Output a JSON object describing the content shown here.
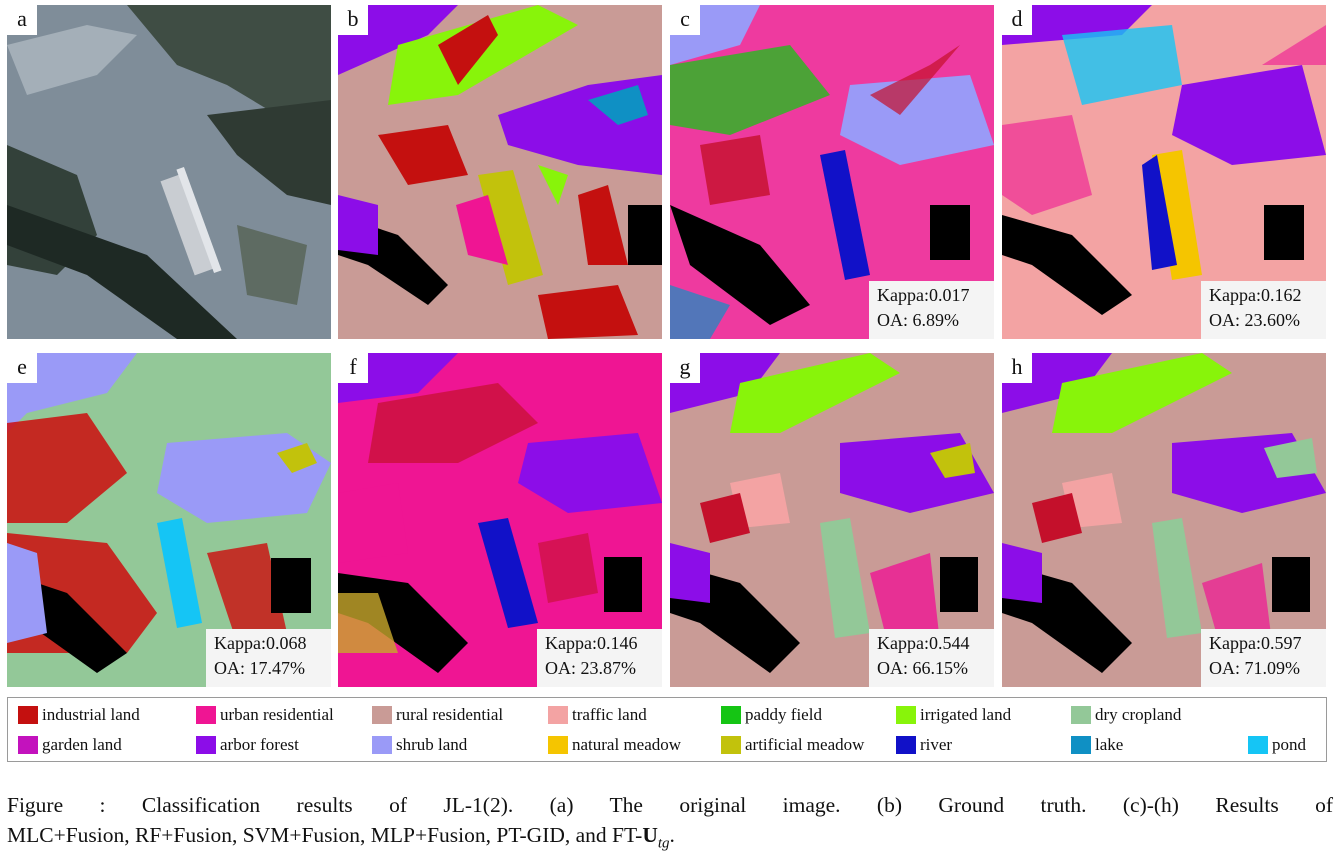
{
  "panels": [
    {
      "id": "a",
      "type": "satellite"
    },
    {
      "id": "b",
      "type": "ground_truth"
    },
    {
      "id": "c",
      "type": "result",
      "kappa": "Kappa:0.017",
      "oa": "OA: 6.89%",
      "base": "#ee3a9f",
      "spots": [
        "#7e7cf0",
        "#15c514",
        "#c4102b",
        "#ee3a9f"
      ]
    },
    {
      "id": "d",
      "type": "result",
      "kappa": "Kappa:0.162",
      "oa": "OA: 23.60%",
      "base": "#f3a3a3",
      "spots": [
        "#ee1a8e",
        "#2fb8ee",
        "#1111c8",
        "#7a12e5"
      ]
    },
    {
      "id": "e",
      "type": "result",
      "kappa": "Kappa:0.068",
      "oa": "OA: 17.47%",
      "base": "#d5b9b2",
      "spots": [
        "#cd0d0d",
        "#93c898",
        "#12b2ee",
        "#cd0d0d"
      ]
    },
    {
      "id": "f",
      "type": "result",
      "kappa": "Kappa:0.146",
      "oa": "OA: 23.87%",
      "base": "#ef1593",
      "spots": [
        "#c4102b",
        "#1111c8",
        "#ee3a9f",
        "#c8a82c"
      ]
    },
    {
      "id": "g",
      "type": "result",
      "kappa": "Kappa:0.544",
      "oa": "OA: 66.15%",
      "base": "#c99b96",
      "spots": [
        "#f3a3a3",
        "#ef1593",
        "#c4102b",
        "#93c898"
      ]
    },
    {
      "id": "h",
      "type": "result",
      "kappa": "Kappa:0.597",
      "oa": "OA: 71.09%",
      "base": "#c99b96",
      "spots": [
        "#f3a3a3",
        "#ef1593",
        "#c4102b",
        "#93c898"
      ]
    }
  ],
  "legend": [
    {
      "label": "industrial land",
      "color": "#c4100f"
    },
    {
      "label": "urban residential",
      "color": "#ef1593"
    },
    {
      "label": "rural residential",
      "color": "#c99b96"
    },
    {
      "label": "traffic land",
      "color": "#f3a3a3"
    },
    {
      "label": "paddy field",
      "color": "#15c514"
    },
    {
      "label": "irrigated land",
      "color": "#88f40a"
    },
    {
      "label": "dry cropland",
      "color": "#93c898"
    },
    {
      "label": "garden land",
      "color": "#c312bd"
    },
    {
      "label": "arbor forest",
      "color": "#8c0de8"
    },
    {
      "label": "shrub land",
      "color": "#9a9af7"
    },
    {
      "label": "natural meadow",
      "color": "#f5c500"
    },
    {
      "label": "artificial meadow",
      "color": "#c2c20c"
    },
    {
      "label": "river",
      "color": "#1111c8"
    },
    {
      "label": "lake",
      "color": "#0f90c4"
    },
    {
      "label": "pond",
      "color": "#15c5f5"
    }
  ],
  "caption": {
    "line1": "Figure    : Classification results of JL-1(2). (a) The original image. (b) Ground truth. (c)-(h) Results of",
    "line2_prefix": "MLC+Fusion, RF+Fusion, SVM+Fusion, MLP+Fusion, PT-GID, and FT-",
    "line2_bold": "U",
    "line2_sub": "tg",
    "line2_end": "."
  }
}
